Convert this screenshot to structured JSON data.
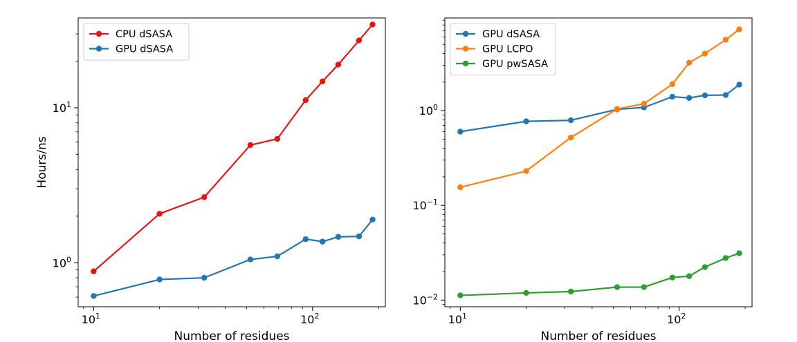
{
  "chart_data": [
    {
      "type": "line",
      "xscale": "log",
      "yscale": "log",
      "xlabel": "Number of residues",
      "ylabel": "Hours/ns",
      "xlim": [
        8.5,
        215
      ],
      "ylim": [
        0.52,
        38
      ],
      "xticks": [
        {
          "value": 10,
          "base": "10",
          "exp": "1"
        },
        {
          "value": 100,
          "base": "10",
          "exp": "2"
        }
      ],
      "yticks": [
        {
          "value": 1,
          "base": "10",
          "exp": "0"
        },
        {
          "value": 10,
          "base": "10",
          "exp": "1"
        }
      ],
      "legend_position": "top-left",
      "x": [
        10,
        20,
        32,
        52,
        69,
        93,
        111,
        131,
        163,
        188
      ],
      "series": [
        {
          "name": "CPU dSASA",
          "color": "#e8150f",
          "values": [
            0.88,
            2.07,
            2.65,
            5.75,
            6.3,
            11.2,
            14.8,
            19.0,
            27.2,
            34.5
          ]
        },
        {
          "name": "GPU dSASA",
          "color": "#1f77b4",
          "values": [
            0.61,
            0.78,
            0.8,
            1.05,
            1.1,
            1.42,
            1.37,
            1.47,
            1.48,
            1.9
          ]
        }
      ]
    },
    {
      "type": "line",
      "xscale": "log",
      "yscale": "log",
      "xlabel": "Number of residues",
      "ylabel": "",
      "xlim": [
        8.5,
        215
      ],
      "ylim": [
        0.0085,
        9.5
      ],
      "xticks": [
        {
          "value": 10,
          "base": "10",
          "exp": "1"
        },
        {
          "value": 100,
          "base": "10",
          "exp": "2"
        }
      ],
      "yticks": [
        {
          "value": 0.01,
          "base": "10",
          "exp": "−2"
        },
        {
          "value": 0.1,
          "base": "10",
          "exp": "−1"
        },
        {
          "value": 1,
          "base": "10",
          "exp": "0"
        }
      ],
      "legend_position": "top-left",
      "x": [
        10,
        20,
        32,
        52,
        69,
        93,
        111,
        131,
        163,
        188
      ],
      "series": [
        {
          "name": "GPU dSASA",
          "color": "#1f77b4",
          "values": [
            0.6,
            0.77,
            0.79,
            1.03,
            1.08,
            1.4,
            1.36,
            1.45,
            1.46,
            1.88
          ]
        },
        {
          "name": "GPU LCPO",
          "color": "#ff7f0e",
          "values": [
            0.155,
            0.23,
            0.52,
            1.04,
            1.18,
            1.9,
            3.2,
            4.0,
            5.6,
            7.2
          ]
        },
        {
          "name": "GPU pwSASA",
          "color": "#2ca02c",
          "values": [
            0.0112,
            0.0119,
            0.0123,
            0.0137,
            0.0137,
            0.0173,
            0.0179,
            0.0223,
            0.0278,
            0.0312
          ]
        }
      ]
    }
  ]
}
